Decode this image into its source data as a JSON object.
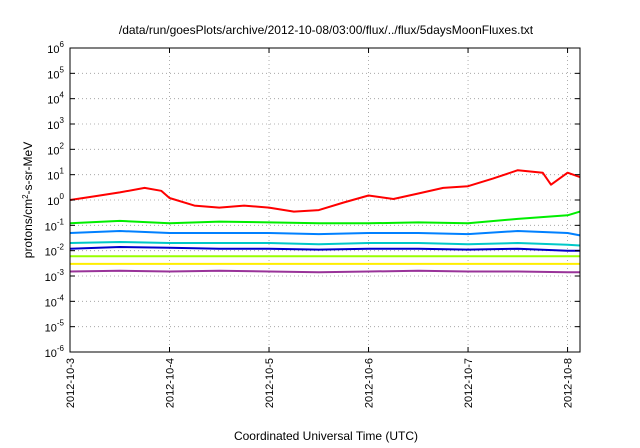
{
  "chart_data": {
    "type": "line",
    "title": "/data/run/goesPlots/archive/2012-10-08/03:00/flux/../flux/5daysMoonFluxes.txt",
    "xlabel": "Coordinated Universal Time (UTC)",
    "ylabel_parts": [
      "protons/cm",
      "2",
      "-s-sr-MeV"
    ],
    "y_scale": "log",
    "ylim": [
      1e-06,
      1000000.0
    ],
    "y_ticks": [
      {
        "base": "10",
        "exp": "6",
        "value": 1000000.0
      },
      {
        "base": "10",
        "exp": "5",
        "value": 100000.0
      },
      {
        "base": "10",
        "exp": "4",
        "value": 10000.0
      },
      {
        "base": "10",
        "exp": "3",
        "value": 1000.0
      },
      {
        "base": "10",
        "exp": "2",
        "value": 100.0
      },
      {
        "base": "10",
        "exp": "1",
        "value": 10.0
      },
      {
        "base": "10",
        "exp": "0",
        "value": 1
      },
      {
        "base": "10",
        "exp": "-1",
        "value": 0.1
      },
      {
        "base": "10",
        "exp": "-2",
        "value": 0.01
      },
      {
        "base": "10",
        "exp": "-3",
        "value": 0.001
      },
      {
        "base": "10",
        "exp": "-4",
        "value": 0.0001
      },
      {
        "base": "10",
        "exp": "-5",
        "value": 1e-05
      },
      {
        "base": "10",
        "exp": "-6",
        "value": 1e-06
      }
    ],
    "x_domain": [
      "2012-10-03T00:00",
      "2012-10-08T03:00"
    ],
    "x_ticks": [
      "2012-10-3",
      "2012-10-4",
      "2012-10-5",
      "2012-10-6",
      "2012-10-7",
      "2012-10-8"
    ],
    "x_tick_dates": [
      "2012-10-03T00:00",
      "2012-10-04T00:00",
      "2012-10-05T00:00",
      "2012-10-06T00:00",
      "2012-10-07T00:00",
      "2012-10-08T00:00"
    ],
    "grid": true,
    "series": [
      {
        "color": "#ff0000",
        "points": [
          [
            "2012-10-03T00:00",
            1.0
          ],
          [
            "2012-10-03T06:00",
            1.4
          ],
          [
            "2012-10-03T12:00",
            2.0
          ],
          [
            "2012-10-03T18:00",
            3.0
          ],
          [
            "2012-10-03T22:00",
            2.3
          ],
          [
            "2012-10-04T00:00",
            1.2
          ],
          [
            "2012-10-04T06:00",
            0.6
          ],
          [
            "2012-10-04T12:00",
            0.5
          ],
          [
            "2012-10-04T18:00",
            0.6
          ],
          [
            "2012-10-05T00:00",
            0.5
          ],
          [
            "2012-10-05T06:00",
            0.35
          ],
          [
            "2012-10-05T12:00",
            0.4
          ],
          [
            "2012-10-05T18:00",
            0.8
          ],
          [
            "2012-10-06T00:00",
            1.5
          ],
          [
            "2012-10-06T06:00",
            1.1
          ],
          [
            "2012-10-06T12:00",
            1.8
          ],
          [
            "2012-10-06T18:00",
            3.0
          ],
          [
            "2012-10-07T00:00",
            3.5
          ],
          [
            "2012-10-07T06:00",
            7.0
          ],
          [
            "2012-10-07T12:00",
            15.0
          ],
          [
            "2012-10-07T18:00",
            12.0
          ],
          [
            "2012-10-07T20:00",
            4.0
          ],
          [
            "2012-10-08T00:00",
            12.0
          ],
          [
            "2012-10-08T03:00",
            8.0
          ]
        ]
      },
      {
        "color": "#00ee00",
        "points": [
          [
            "2012-10-03T00:00",
            0.12
          ],
          [
            "2012-10-03T12:00",
            0.15
          ],
          [
            "2012-10-04T00:00",
            0.12
          ],
          [
            "2012-10-04T12:00",
            0.14
          ],
          [
            "2012-10-05T00:00",
            0.13
          ],
          [
            "2012-10-05T12:00",
            0.12
          ],
          [
            "2012-10-06T00:00",
            0.12
          ],
          [
            "2012-10-06T12:00",
            0.13
          ],
          [
            "2012-10-07T00:00",
            0.12
          ],
          [
            "2012-10-07T12:00",
            0.18
          ],
          [
            "2012-10-08T00:00",
            0.25
          ],
          [
            "2012-10-08T03:00",
            0.35
          ]
        ]
      },
      {
        "color": "#0080ff",
        "points": [
          [
            "2012-10-03T00:00",
            0.05
          ],
          [
            "2012-10-03T12:00",
            0.06
          ],
          [
            "2012-10-04T00:00",
            0.05
          ],
          [
            "2012-10-04T12:00",
            0.05
          ],
          [
            "2012-10-05T00:00",
            0.05
          ],
          [
            "2012-10-05T12:00",
            0.045
          ],
          [
            "2012-10-06T00:00",
            0.05
          ],
          [
            "2012-10-06T12:00",
            0.05
          ],
          [
            "2012-10-07T00:00",
            0.045
          ],
          [
            "2012-10-07T12:00",
            0.06
          ],
          [
            "2012-10-08T00:00",
            0.05
          ],
          [
            "2012-10-08T03:00",
            0.04
          ]
        ]
      },
      {
        "color": "#00c8c8",
        "points": [
          [
            "2012-10-03T00:00",
            0.02
          ],
          [
            "2012-10-03T12:00",
            0.022
          ],
          [
            "2012-10-04T00:00",
            0.02
          ],
          [
            "2012-10-04T12:00",
            0.02
          ],
          [
            "2012-10-05T00:00",
            0.02
          ],
          [
            "2012-10-05T12:00",
            0.018
          ],
          [
            "2012-10-06T00:00",
            0.02
          ],
          [
            "2012-10-06T12:00",
            0.02
          ],
          [
            "2012-10-07T00:00",
            0.018
          ],
          [
            "2012-10-07T12:00",
            0.02
          ],
          [
            "2012-10-08T00:00",
            0.017
          ],
          [
            "2012-10-08T03:00",
            0.016
          ]
        ]
      },
      {
        "color": "#0000cc",
        "points": [
          [
            "2012-10-03T00:00",
            0.012
          ],
          [
            "2012-10-03T12:00",
            0.014
          ],
          [
            "2012-10-04T00:00",
            0.013
          ],
          [
            "2012-10-04T12:00",
            0.012
          ],
          [
            "2012-10-05T00:00",
            0.012
          ],
          [
            "2012-10-05T12:00",
            0.011
          ],
          [
            "2012-10-06T00:00",
            0.012
          ],
          [
            "2012-10-06T12:00",
            0.012
          ],
          [
            "2012-10-07T00:00",
            0.011
          ],
          [
            "2012-10-07T12:00",
            0.012
          ],
          [
            "2012-10-08T00:00",
            0.01
          ],
          [
            "2012-10-08T03:00",
            0.01
          ]
        ]
      },
      {
        "color": "#99ff00",
        "points": [
          [
            "2012-10-03T00:00",
            0.006
          ],
          [
            "2012-10-03T12:00",
            0.006
          ],
          [
            "2012-10-04T00:00",
            0.006
          ],
          [
            "2012-10-04T12:00",
            0.006
          ],
          [
            "2012-10-05T00:00",
            0.006
          ],
          [
            "2012-10-05T12:00",
            0.006
          ],
          [
            "2012-10-06T00:00",
            0.006
          ],
          [
            "2012-10-06T12:00",
            0.006
          ],
          [
            "2012-10-07T00:00",
            0.006
          ],
          [
            "2012-10-07T12:00",
            0.006
          ],
          [
            "2012-10-08T00:00",
            0.006
          ],
          [
            "2012-10-08T03:00",
            0.006
          ]
        ]
      },
      {
        "color": "#ffee00",
        "points": [
          [
            "2012-10-03T00:00",
            0.003
          ],
          [
            "2012-10-03T12:00",
            0.003
          ],
          [
            "2012-10-04T00:00",
            0.003
          ],
          [
            "2012-10-04T12:00",
            0.003
          ],
          [
            "2012-10-05T00:00",
            0.003
          ],
          [
            "2012-10-05T12:00",
            0.003
          ],
          [
            "2012-10-06T00:00",
            0.003
          ],
          [
            "2012-10-06T12:00",
            0.003
          ],
          [
            "2012-10-07T00:00",
            0.003
          ],
          [
            "2012-10-07T12:00",
            0.003
          ],
          [
            "2012-10-08T00:00",
            0.003
          ],
          [
            "2012-10-08T03:00",
            0.003
          ]
        ]
      },
      {
        "color": "#993399",
        "points": [
          [
            "2012-10-03T00:00",
            0.0015
          ],
          [
            "2012-10-03T12:00",
            0.0016
          ],
          [
            "2012-10-04T00:00",
            0.0015
          ],
          [
            "2012-10-04T12:00",
            0.0016
          ],
          [
            "2012-10-05T00:00",
            0.0015
          ],
          [
            "2012-10-05T12:00",
            0.0014
          ],
          [
            "2012-10-06T00:00",
            0.0015
          ],
          [
            "2012-10-06T12:00",
            0.0016
          ],
          [
            "2012-10-07T00:00",
            0.0015
          ],
          [
            "2012-10-07T12:00",
            0.0015
          ],
          [
            "2012-10-08T00:00",
            0.0014
          ],
          [
            "2012-10-08T03:00",
            0.0014
          ]
        ]
      }
    ]
  }
}
